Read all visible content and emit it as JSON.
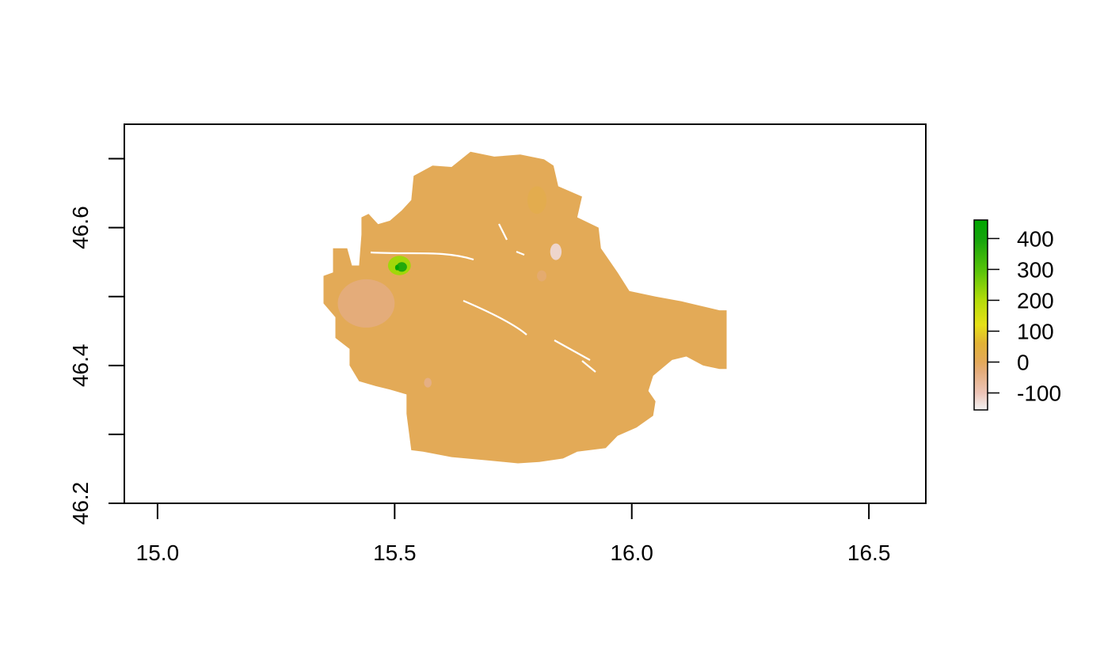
{
  "chart_data": {
    "type": "heatmap",
    "title": "",
    "xlabel": "",
    "ylabel": "",
    "xlim": [
      14.93,
      16.62
    ],
    "ylim": [
      46.2,
      46.75
    ],
    "x_ticks": [
      {
        "value": 15.0,
        "label": "15.0"
      },
      {
        "value": 15.5,
        "label": "15.5"
      },
      {
        "value": 16.0,
        "label": "16.0"
      },
      {
        "value": 16.5,
        "label": "16.5"
      }
    ],
    "y_ticks": [
      {
        "value": 46.2,
        "label": "46.2"
      },
      {
        "value": 46.3,
        "label": ""
      },
      {
        "value": 46.4,
        "label": "46.4"
      },
      {
        "value": 46.5,
        "label": ""
      },
      {
        "value": 46.6,
        "label": "46.6"
      },
      {
        "value": 46.7,
        "label": ""
      }
    ],
    "raster": {
      "base_value": 5,
      "extent_x": [
        15.35,
        16.2
      ],
      "extent_y": [
        46.26,
        46.71
      ],
      "outline": [
        [
          15.35,
          46.49
        ],
        [
          15.35,
          46.53
        ],
        [
          15.37,
          46.535
        ],
        [
          15.37,
          46.57
        ],
        [
          15.4,
          46.57
        ],
        [
          15.41,
          46.545
        ],
        [
          15.425,
          46.545
        ],
        [
          15.43,
          46.59
        ],
        [
          15.43,
          46.615
        ],
        [
          15.445,
          46.62
        ],
        [
          15.465,
          46.605
        ],
        [
          15.49,
          46.61
        ],
        [
          15.515,
          46.625
        ],
        [
          15.535,
          46.64
        ],
        [
          15.54,
          46.675
        ],
        [
          15.58,
          46.69
        ],
        [
          15.62,
          46.688
        ],
        [
          15.66,
          46.71
        ],
        [
          15.71,
          46.703
        ],
        [
          15.765,
          46.706
        ],
        [
          15.815,
          46.699
        ],
        [
          15.835,
          46.69
        ],
        [
          15.845,
          46.66
        ],
        [
          15.895,
          46.645
        ],
        [
          15.885,
          46.615
        ],
        [
          15.93,
          46.6
        ],
        [
          15.935,
          46.57
        ],
        [
          15.97,
          46.535
        ],
        [
          15.995,
          46.508
        ],
        [
          16.05,
          46.5
        ],
        [
          16.105,
          46.493
        ],
        [
          16.185,
          46.48
        ],
        [
          16.2,
          46.48
        ],
        [
          16.2,
          46.395
        ],
        [
          16.185,
          46.395
        ],
        [
          16.15,
          46.4
        ],
        [
          16.115,
          46.413
        ],
        [
          16.085,
          46.408
        ],
        [
          16.045,
          46.385
        ],
        [
          16.035,
          46.363
        ],
        [
          16.05,
          46.348
        ],
        [
          16.045,
          46.327
        ],
        [
          16.01,
          46.31
        ],
        [
          15.97,
          46.298
        ],
        [
          15.945,
          46.28
        ],
        [
          15.885,
          46.275
        ],
        [
          15.855,
          46.265
        ],
        [
          15.805,
          46.26
        ],
        [
          15.76,
          46.258
        ],
        [
          15.7,
          46.262
        ],
        [
          15.62,
          46.267
        ],
        [
          15.56,
          46.275
        ],
        [
          15.535,
          46.277
        ],
        [
          15.525,
          46.33
        ],
        [
          15.525,
          46.358
        ],
        [
          15.49,
          46.365
        ],
        [
          15.46,
          46.37
        ],
        [
          15.425,
          46.377
        ],
        [
          15.405,
          46.4
        ],
        [
          15.405,
          46.424
        ],
        [
          15.375,
          46.44
        ],
        [
          15.375,
          46.47
        ]
      ],
      "hotspots": [
        {
          "x": 15.51,
          "y": 46.545,
          "rx": 0.024,
          "ry": 0.014,
          "value": 220
        },
        {
          "x": 15.515,
          "y": 46.543,
          "rx": 0.011,
          "ry": 0.007,
          "value": 380
        },
        {
          "x": 15.505,
          "y": 46.542,
          "rx": 0.004,
          "ry": 0.004,
          "value": 450
        },
        {
          "x": 15.44,
          "y": 46.49,
          "rx": 0.06,
          "ry": 0.035,
          "value": -30
        },
        {
          "x": 15.84,
          "y": 46.565,
          "rx": 0.012,
          "ry": 0.012,
          "value": -120
        },
        {
          "x": 15.81,
          "y": 46.53,
          "rx": 0.01,
          "ry": 0.008,
          "value": -20
        },
        {
          "x": 15.57,
          "y": 46.375,
          "rx": 0.008,
          "ry": 0.007,
          "value": -40
        },
        {
          "x": 15.8,
          "y": 46.64,
          "rx": 0.02,
          "ry": 0.02,
          "value": 20
        }
      ]
    },
    "legend": {
      "placement": "right",
      "range": [
        -155,
        460
      ],
      "ticks": [
        {
          "value": 400,
          "label": "400"
        },
        {
          "value": 300,
          "label": "300"
        },
        {
          "value": 200,
          "label": "200"
        },
        {
          "value": 100,
          "label": "100"
        },
        {
          "value": 0,
          "label": "0"
        },
        {
          "value": -100,
          "label": "-100"
        }
      ],
      "colors": [
        {
          "value": -155,
          "color": "#f2f2f2"
        },
        {
          "value": -100,
          "color": "#ecc4b7"
        },
        {
          "value": -30,
          "color": "#e4ac7a"
        },
        {
          "value": 0,
          "color": "#e3a95a"
        },
        {
          "value": 60,
          "color": "#e2b236"
        },
        {
          "value": 120,
          "color": "#e6e018"
        },
        {
          "value": 200,
          "color": "#b4dc0a"
        },
        {
          "value": 300,
          "color": "#55c20a"
        },
        {
          "value": 400,
          "color": "#14a30c"
        },
        {
          "value": 460,
          "color": "#00a600"
        }
      ]
    },
    "grid": false
  }
}
